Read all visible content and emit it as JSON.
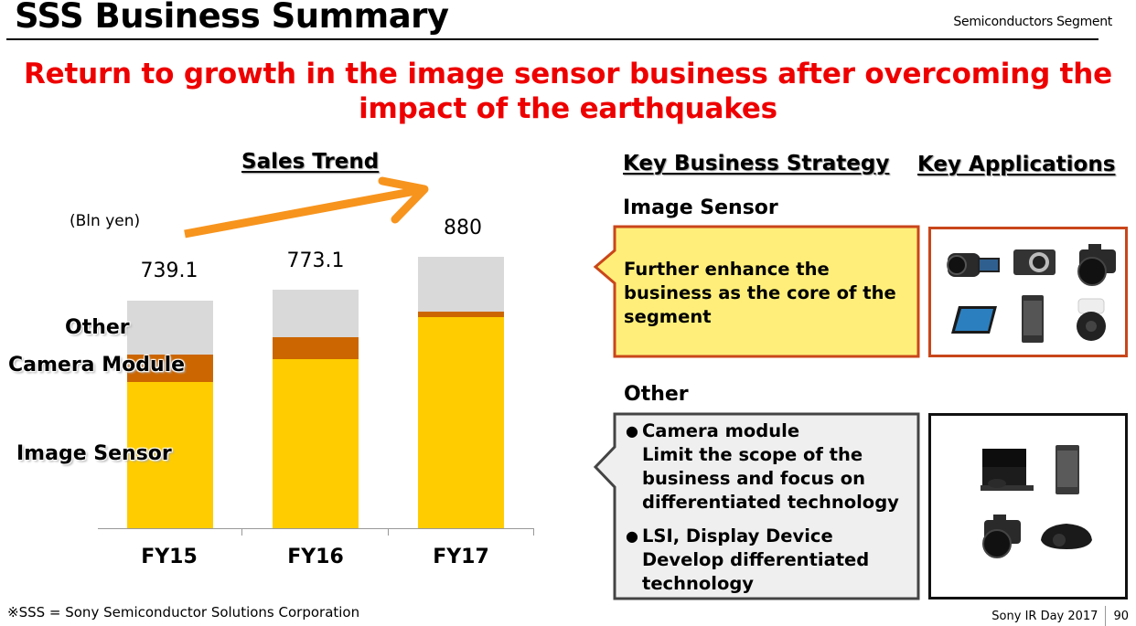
{
  "header": {
    "title": "SSS Business Summary",
    "segment": "Semiconductors Segment"
  },
  "headline": {
    "line1": "Return to growth in the image sensor business after overcoming the",
    "line2": "impact of the earthquakes"
  },
  "sales_trend": {
    "heading": "Sales Trend",
    "unit": "(Bln yen)",
    "series_labels": {
      "other": "Other",
      "camera_module": "Camera Module",
      "image_sensor": "Image Sensor"
    },
    "totals": [
      "739.1",
      "773.1",
      "880"
    ],
    "categories": [
      "FY15",
      "FY16",
      "FY17"
    ]
  },
  "chart_data": {
    "type": "bar",
    "stacked": true,
    "title": "Sales Trend",
    "ylabel": "(Bln yen)",
    "xlabel": "",
    "categories": [
      "FY15",
      "FY16",
      "FY17"
    ],
    "totals": [
      739.1,
      773.1,
      880
    ],
    "series": [
      {
        "name": "Image Sensor",
        "color": "#ffcc00",
        "values": [
          475,
          549,
          685
        ]
      },
      {
        "name": "Camera Module",
        "color": "#cc6600",
        "values": [
          89,
          71,
          18
        ]
      },
      {
        "name": "Other",
        "color": "#d9d9d9",
        "values": [
          175,
          153,
          177
        ]
      }
    ],
    "ylim": [
      0,
      880
    ],
    "grid": false,
    "legend": "inline-left",
    "annotations": [
      "Upward orange trend arrow"
    ]
  },
  "strategy": {
    "heading": "Key Business Strategy",
    "apps_heading": "Key Applications",
    "image_sensor": {
      "title": "Image Sensor",
      "text_lines": [
        "Further enhance the",
        "business as the core of the",
        "segment"
      ],
      "applications": [
        "camcorder",
        "compact-camera",
        "mirrorless-camera",
        "tablet",
        "smartphone",
        "security-camera"
      ]
    },
    "other": {
      "title": "Other",
      "items": [
        {
          "bullet": "●",
          "title": "Camera module",
          "lines": [
            "Limit the scope of the",
            "business and focus on",
            "differentiated technology"
          ]
        },
        {
          "bullet": "●",
          "title": "LSI, Display Device",
          "lines": [
            "Develop differentiated",
            "technology"
          ]
        }
      ],
      "applications": [
        "game-console",
        "smartphone",
        "mirrorless-camera",
        "projector"
      ]
    }
  },
  "footer": {
    "note": "※SSS = Sony Semiconductor Solutions Corporation",
    "event": "Sony IR Day 2017",
    "page": "90"
  },
  "colors": {
    "headline_red": "#ee0000",
    "image_sensor": "#ffcc00",
    "camera_module": "#cc6600",
    "other": "#d9d9d9",
    "arrow": "#f7941d",
    "callout_yellow_fill": "#ffef7a",
    "callout_yellow_border": "#c9461a",
    "callout_gray_fill": "#efefef",
    "callout_gray_border": "#444444"
  }
}
